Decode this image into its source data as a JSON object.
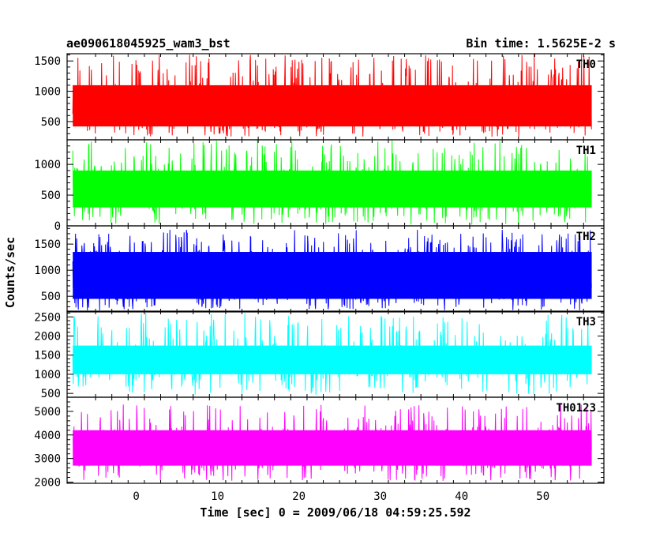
{
  "header": {
    "left": "ae090618045925_wam3_bst",
    "right": "Bin time: 1.5625E-2 s"
  },
  "chart_data": {
    "type": "line",
    "xlabel": "Time [sec] 0 = 2009/06/18 04:59:25.592",
    "ylabel": "Counts/sec",
    "xlim": [
      -8.5,
      57.5
    ],
    "x_range_data": [
      -7.8,
      56.0
    ],
    "bin_time_s": 0.015625,
    "x_ticks": [
      0,
      10,
      20,
      30,
      40,
      50
    ],
    "panels": [
      {
        "name": "TH0",
        "color": "#ff0000",
        "ylim": [
          200,
          1620
        ],
        "yticks": [
          500,
          1000,
          1500
        ],
        "band": {
          "min": 250,
          "max": 1620,
          "core_low": 420,
          "core_high": 1100
        }
      },
      {
        "name": "TH1",
        "color": "#00ff00",
        "ylim": [
          0,
          1400
        ],
        "yticks": [
          0,
          500,
          1000
        ],
        "band": {
          "min": 20,
          "max": 1400,
          "core_low": 300,
          "core_high": 900
        }
      },
      {
        "name": "TH2",
        "color": "#0000ff",
        "ylim": [
          200,
          1850
        ],
        "yticks": [
          500,
          1000,
          1500
        ],
        "band": {
          "min": 230,
          "max": 1780,
          "core_low": 450,
          "core_high": 1350
        }
      },
      {
        "name": "TH3",
        "color": "#00ffff",
        "ylim": [
          400,
          2650
        ],
        "yticks": [
          500,
          1000,
          1500,
          2000,
          2500
        ],
        "band": {
          "min": 450,
          "max": 2600,
          "core_low": 1000,
          "core_high": 1750
        }
      },
      {
        "name": "TH0123",
        "color": "#ff00ff",
        "ylim": [
          1950,
          5600
        ],
        "yticks": [
          2000,
          3000,
          4000,
          5000
        ],
        "band": {
          "min": 2050,
          "max": 5300,
          "core_low": 2700,
          "core_high": 4200
        }
      }
    ]
  }
}
